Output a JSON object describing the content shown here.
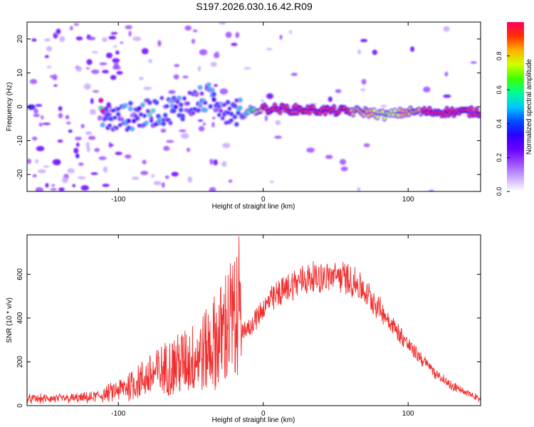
{
  "title": "S197.2026.030.16.42.R09",
  "chart_data": [
    {
      "type": "heatmap",
      "xlabel": "Height of straight line (km)",
      "ylabel": "Frequency (Hz)",
      "xlim": [
        -163,
        150
      ],
      "ylim": [
        -25,
        25
      ],
      "xticks": [
        -100,
        0,
        100
      ],
      "yticks": [
        -20,
        -10,
        0,
        10,
        20
      ],
      "colorbar": {
        "label": "Normalized spectral amplitude",
        "range": [
          0,
          1
        ],
        "ticks": [
          "0.0",
          "0.2",
          "0.4",
          "0.6",
          "0.8"
        ],
        "colors": [
          "#ffffff",
          "#c9a8ff",
          "#9b4dff",
          "#6a00ff",
          "#2a00ff",
          "#0050ff",
          "#00c8ff",
          "#00ff90",
          "#40ff00",
          "#d0ff00",
          "#ffb000",
          "#ff3000",
          "#ff0060"
        ]
      },
      "ridge": [
        {
          "x": -110,
          "f": -4,
          "a": 0.3
        },
        {
          "x": -95,
          "f": -3,
          "a": 0.35
        },
        {
          "x": -80,
          "f": -2,
          "a": 0.4
        },
        {
          "x": -65,
          "f": -1,
          "a": 0.35
        },
        {
          "x": -50,
          "f": 1,
          "a": 0.4
        },
        {
          "x": -35,
          "f": 3,
          "a": 0.35
        },
        {
          "x": -25,
          "f": -1,
          "a": 0.3
        },
        {
          "x": -15,
          "f": -2,
          "a": 0.4
        },
        {
          "x": 0,
          "f": -0.5,
          "a": 0.9
        },
        {
          "x": 25,
          "f": -0.8,
          "a": 0.92
        },
        {
          "x": 50,
          "f": -1.2,
          "a": 0.9
        },
        {
          "x": 70,
          "f": -1.5,
          "a": 0.85
        },
        {
          "x": 85,
          "f": -2.5,
          "a": 0.7
        },
        {
          "x": 100,
          "f": -1.5,
          "a": 0.85
        },
        {
          "x": 125,
          "f": -1.5,
          "a": 0.92
        },
        {
          "x": 150,
          "f": -1.5,
          "a": 0.9
        }
      ]
    },
    {
      "type": "line",
      "xlabel": "Height of straight line (km)",
      "ylabel": "SNR (10 * v/v)",
      "xlim": [
        -163,
        150
      ],
      "ylim": [
        0,
        780
      ],
      "xticks": [
        -100,
        0,
        100
      ],
      "yticks": [
        0,
        200,
        400,
        600
      ],
      "line_color": "#f03030",
      "series": [
        {
          "name": "SNR",
          "x": [
            -163,
            -140,
            -120,
            -110,
            -100,
            -90,
            -80,
            -70,
            -60,
            -50,
            -40,
            -30,
            -25,
            -20,
            -15,
            -10,
            -5,
            0,
            10,
            20,
            30,
            40,
            50,
            60,
            70,
            80,
            90,
            100,
            110,
            120,
            130,
            140,
            150
          ],
          "y": [
            20,
            22,
            25,
            40,
            60,
            90,
            120,
            150,
            180,
            200,
            240,
            300,
            360,
            380,
            360,
            380,
            430,
            480,
            540,
            590,
            615,
            625,
            630,
            610,
            560,
            480,
            390,
            300,
            230,
            160,
            110,
            70,
            45
          ]
        }
      ]
    }
  ]
}
